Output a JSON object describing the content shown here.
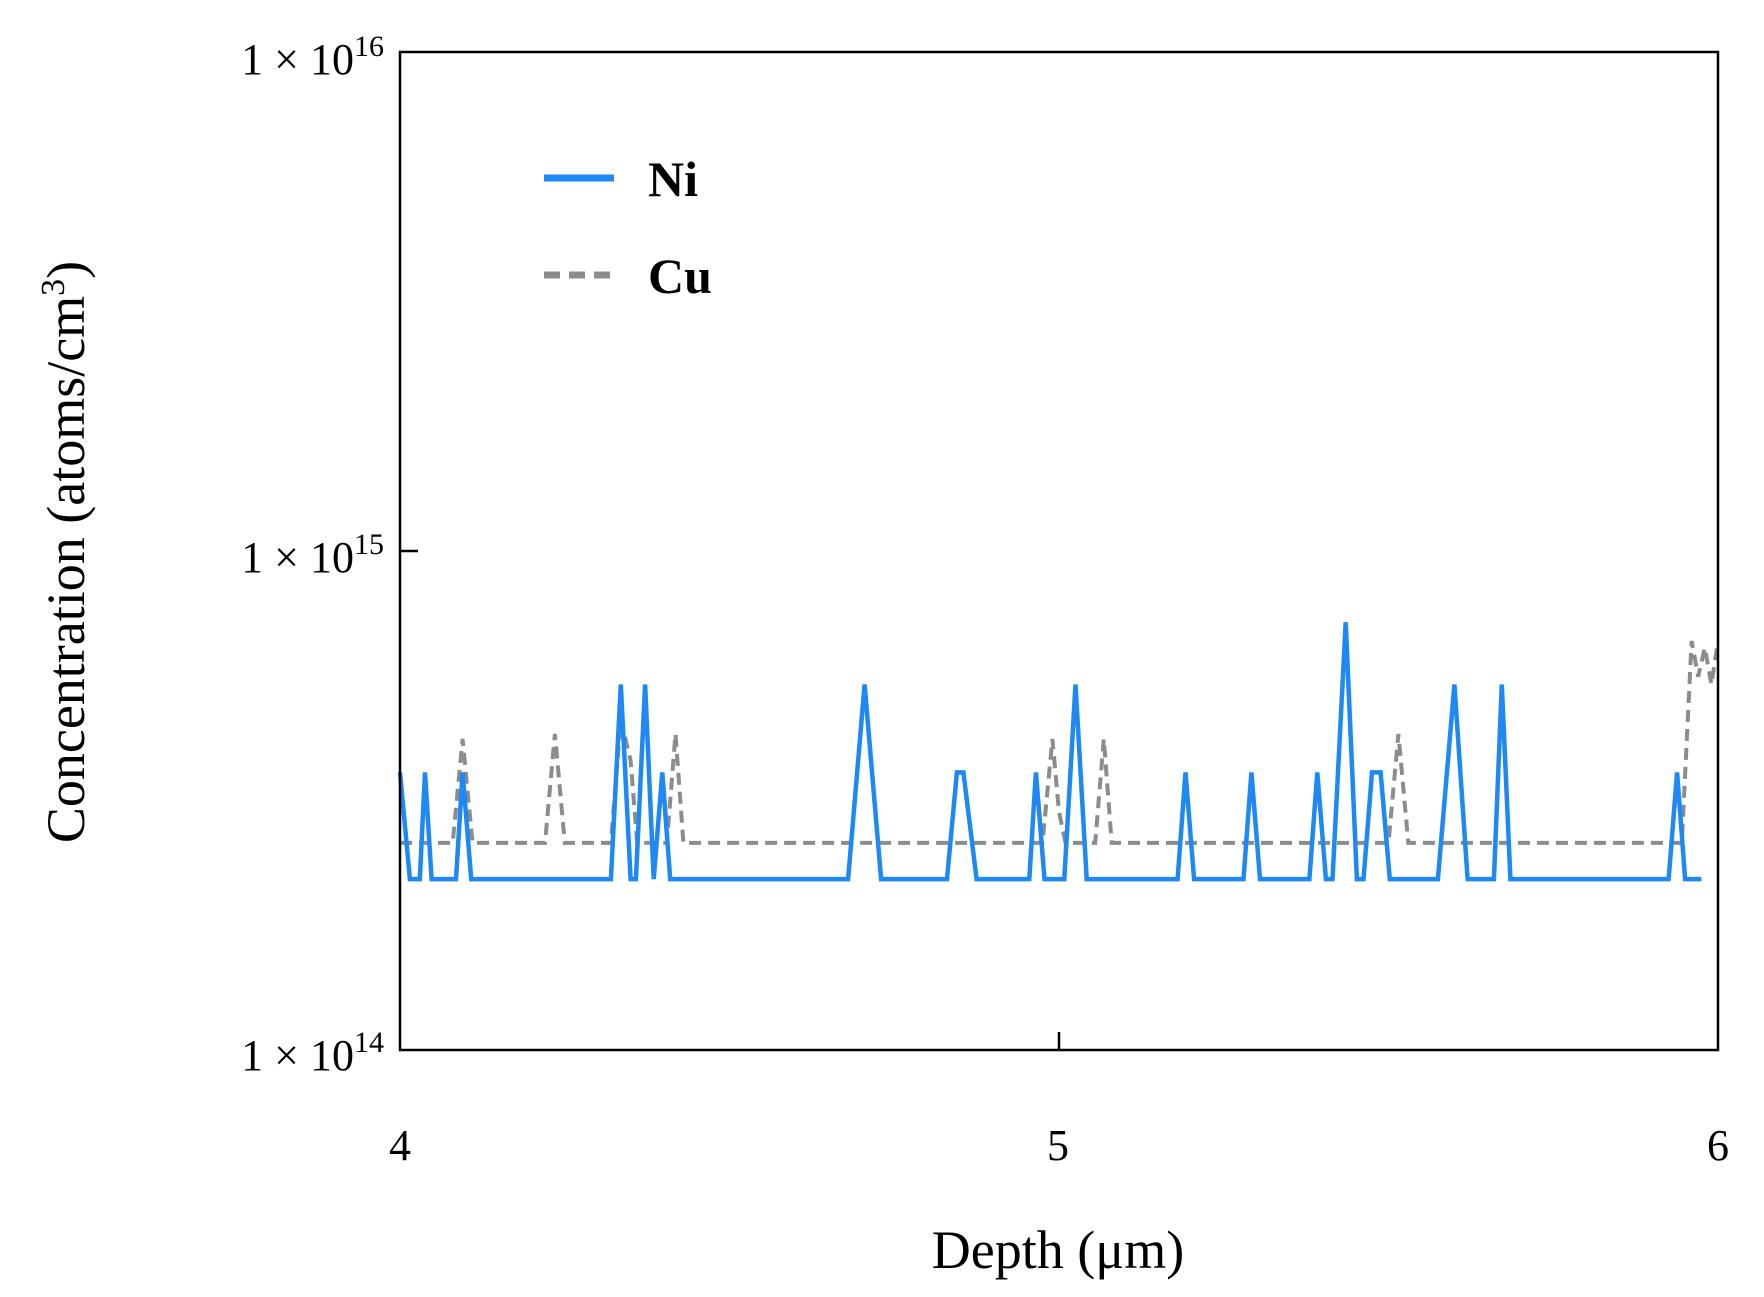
{
  "chart_data": {
    "type": "line",
    "xlabel": "Depth (μm)",
    "ylabel": {
      "main": "Concentration (atoms/cm",
      "superscript": "3",
      "suffix": ")"
    },
    "xlim": [
      4,
      6
    ],
    "ylim": [
      100000000000000.0,
      1e+16
    ],
    "yscale": "log",
    "x_ticks": [
      {
        "value": 4,
        "label": "4"
      },
      {
        "value": 5,
        "label": "5"
      },
      {
        "value": 6,
        "label": "6"
      }
    ],
    "y_ticks": [
      {
        "value": 1e+16,
        "mantissa": "1 × 10",
        "exponent": "16"
      },
      {
        "value": 1000000000000000.0,
        "mantissa": "1 × 10",
        "exponent": "15"
      },
      {
        "value": 100000000000000.0,
        "mantissa": "1 × 10",
        "exponent": "14"
      }
    ],
    "legend_position": "top-left",
    "series": [
      {
        "name": "Ni",
        "color": "#1E88F5",
        "style": "solid",
        "points": [
          [
            4.0,
            360000000000000.0
          ],
          [
            4.015,
            220000000000000.0
          ],
          [
            4.03,
            220000000000000.0
          ],
          [
            4.038,
            360000000000000.0
          ],
          [
            4.048,
            220000000000000.0
          ],
          [
            4.085,
            220000000000000.0
          ],
          [
            4.095,
            360000000000000.0
          ],
          [
            4.108,
            220000000000000.0
          ],
          [
            4.32,
            220000000000000.0
          ],
          [
            4.335,
            540000000000000.0
          ],
          [
            4.35,
            220000000000000.0
          ],
          [
            4.358,
            220000000000000.0
          ],
          [
            4.372,
            540000000000000.0
          ],
          [
            4.385,
            220000000000000.0
          ],
          [
            4.398,
            360000000000000.0
          ],
          [
            4.41,
            220000000000000.0
          ],
          [
            4.68,
            220000000000000.0
          ],
          [
            4.705,
            540000000000000.0
          ],
          [
            4.73,
            220000000000000.0
          ],
          [
            4.83,
            220000000000000.0
          ],
          [
            4.845,
            360000000000000.0
          ],
          [
            4.855,
            360000000000000.0
          ],
          [
            4.875,
            220000000000000.0
          ],
          [
            4.955,
            220000000000000.0
          ],
          [
            4.965,
            360000000000000.0
          ],
          [
            4.978,
            220000000000000.0
          ],
          [
            5.008,
            220000000000000.0
          ],
          [
            5.025,
            540000000000000.0
          ],
          [
            5.042,
            220000000000000.0
          ],
          [
            5.18,
            220000000000000.0
          ],
          [
            5.192,
            360000000000000.0
          ],
          [
            5.205,
            220000000000000.0
          ],
          [
            5.28,
            220000000000000.0
          ],
          [
            5.292,
            360000000000000.0
          ],
          [
            5.305,
            220000000000000.0
          ],
          [
            5.38,
            220000000000000.0
          ],
          [
            5.392,
            360000000000000.0
          ],
          [
            5.405,
            220000000000000.0
          ],
          [
            5.415,
            220000000000000.0
          ],
          [
            5.435,
            720000000000000.0
          ],
          [
            5.452,
            220000000000000.0
          ],
          [
            5.462,
            220000000000000.0
          ],
          [
            5.475,
            360000000000000.0
          ],
          [
            5.488,
            360000000000000.0
          ],
          [
            5.502,
            220000000000000.0
          ],
          [
            5.575,
            220000000000000.0
          ],
          [
            5.6,
            540000000000000.0
          ],
          [
            5.62,
            220000000000000.0
          ],
          [
            5.66,
            220000000000000.0
          ],
          [
            5.672,
            540000000000000.0
          ],
          [
            5.685,
            220000000000000.0
          ],
          [
            5.925,
            220000000000000.0
          ],
          [
            5.938,
            360000000000000.0
          ],
          [
            5.95,
            220000000000000.0
          ],
          [
            5.975,
            220000000000000.0
          ]
        ]
      },
      {
        "name": "Cu",
        "color": "#8C8C8C",
        "style": "dashed",
        "points": [
          [
            4.0,
            260000000000000.0
          ],
          [
            4.08,
            260000000000000.0
          ],
          [
            4.095,
            420000000000000.0
          ],
          [
            4.11,
            260000000000000.0
          ],
          [
            4.22,
            260000000000000.0
          ],
          [
            4.235,
            430000000000000.0
          ],
          [
            4.25,
            260000000000000.0
          ],
          [
            4.32,
            260000000000000.0
          ],
          [
            4.335,
            460000000000000.0
          ],
          [
            4.35,
            380000000000000.0
          ],
          [
            4.36,
            260000000000000.0
          ],
          [
            4.405,
            260000000000000.0
          ],
          [
            4.418,
            430000000000000.0
          ],
          [
            4.43,
            260000000000000.0
          ],
          [
            4.975,
            260000000000000.0
          ],
          [
            4.99,
            420000000000000.0
          ],
          [
            5.0,
            300000000000000.0
          ],
          [
            5.01,
            260000000000000.0
          ],
          [
            5.055,
            260000000000000.0
          ],
          [
            5.068,
            420000000000000.0
          ],
          [
            5.08,
            260000000000000.0
          ],
          [
            5.5,
            260000000000000.0
          ],
          [
            5.515,
            430000000000000.0
          ],
          [
            5.53,
            260000000000000.0
          ],
          [
            5.945,
            260000000000000.0
          ],
          [
            5.96,
            660000000000000.0
          ],
          [
            5.97,
            560000000000000.0
          ],
          [
            5.98,
            640000000000000.0
          ],
          [
            5.99,
            540000000000000.0
          ],
          [
            6.0,
            660000000000000.0
          ]
        ]
      }
    ]
  }
}
